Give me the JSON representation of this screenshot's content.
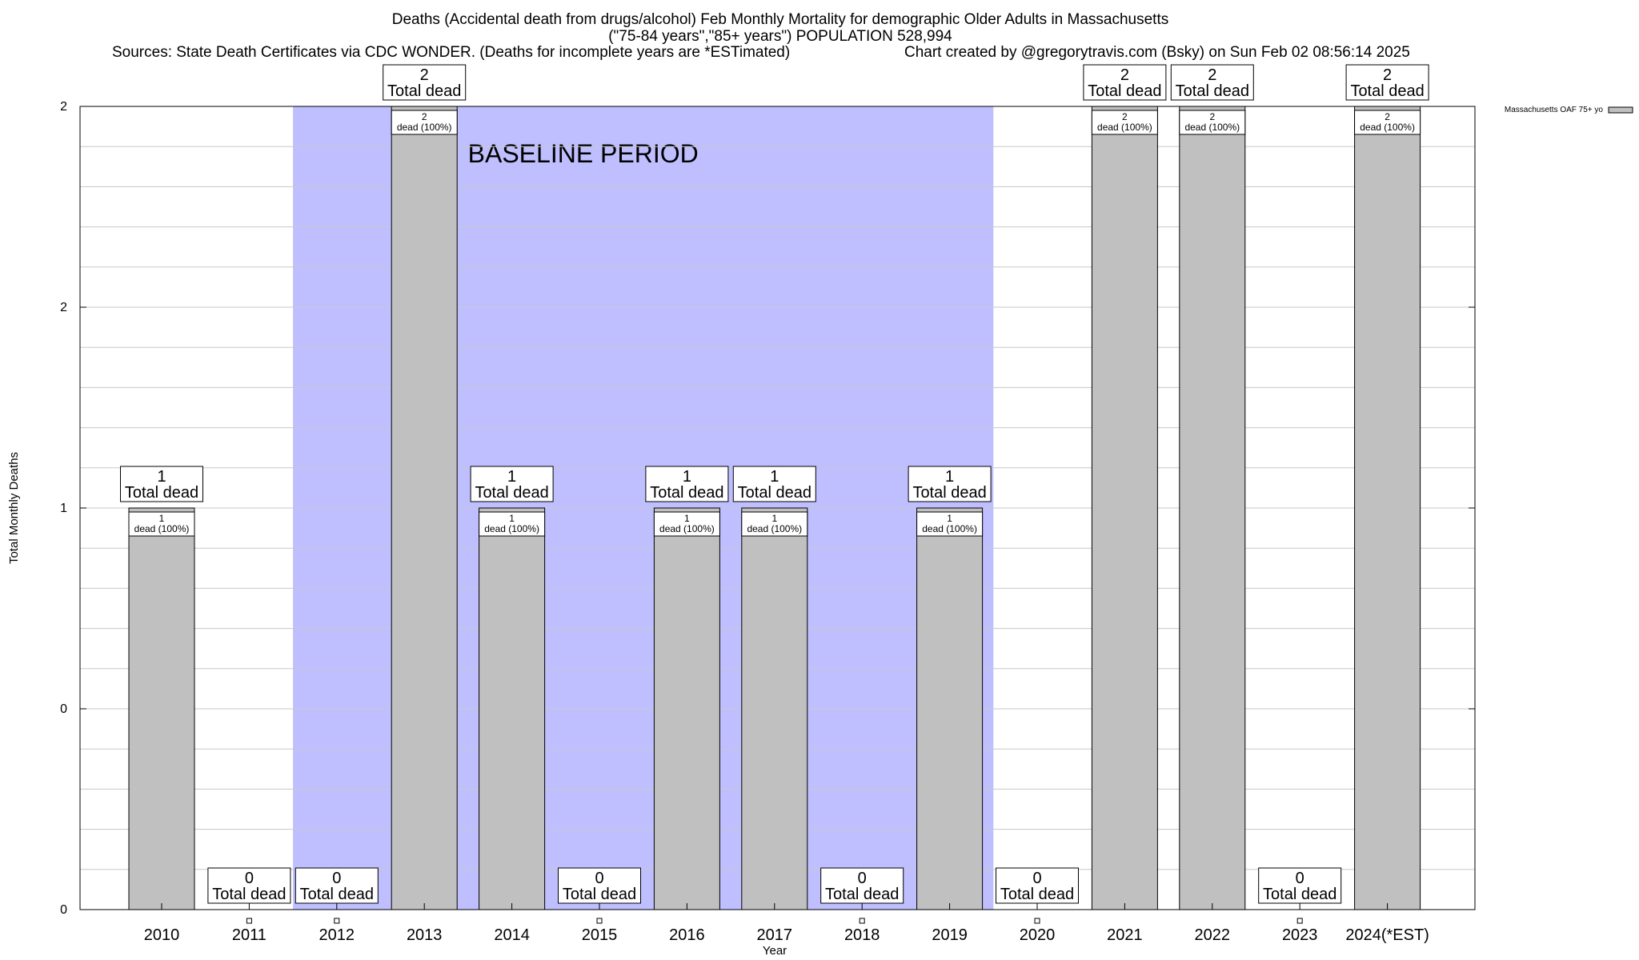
{
  "header": {
    "title": "Deaths (Accidental death from drugs/alcohol) Feb Monthly Mortality for demographic Older Adults in Massachusetts",
    "subtitle": "(\"75-84 years\",\"85+ years\") POPULATION 528,994",
    "sources": "Sources: State Death Certificates via CDC WONDER. (Deaths for incomplete years are *ESTimated)",
    "credit": "Chart created by @gregorytravis.com (Bsky) on Sun Feb 02 08:56:14 2025"
  },
  "colors": {
    "bar": "#c0c0c0",
    "baseline": "#bfbfff",
    "grid": "#c8c8c8"
  },
  "chart_data": {
    "type": "bar",
    "xlabel": "Year",
    "ylabel": "Total Monthly Deaths",
    "ylim": [
      0,
      2
    ],
    "y_tick_labels": [
      "0",
      "0",
      "1",
      "2",
      "2"
    ],
    "grid": true,
    "legend": {
      "placement": "top-right",
      "label": "Massachusetts OAF 75+ yo"
    },
    "categories": [
      "2010",
      "2011",
      "2012",
      "2013",
      "2014",
      "2015",
      "2016",
      "2017",
      "2018",
      "2019",
      "2020",
      "2021",
      "2022",
      "2023",
      "2024(*EST)"
    ],
    "values": [
      1,
      0,
      0,
      2,
      1,
      0,
      1,
      1,
      0,
      1,
      0,
      2,
      2,
      0,
      2
    ],
    "inner_labels": [
      "1\ndead (100%)",
      "",
      "",
      "2\ndead (100%)",
      "1\ndead (100%)",
      "",
      "1\ndead (100%)",
      "1\ndead (100%)",
      "",
      "1\ndead (100%)",
      "",
      "2\ndead (100%)",
      "2\ndead (100%)",
      "",
      "2\ndead (100%)"
    ],
    "total_labels": [
      "1\nTotal dead",
      "0\nTotal dead",
      "0\nTotal dead",
      "2\nTotal dead",
      "1\nTotal dead",
      "0\nTotal dead",
      "1\nTotal dead",
      "1\nTotal dead",
      "0\nTotal dead",
      "1\nTotal dead",
      "0\nTotal dead",
      "2\nTotal dead",
      "2\nTotal dead",
      "0\nTotal dead",
      "2\nTotal dead"
    ],
    "baseline": {
      "label": "BASELINE PERIOD",
      "from": "2012",
      "to": "2019"
    }
  }
}
